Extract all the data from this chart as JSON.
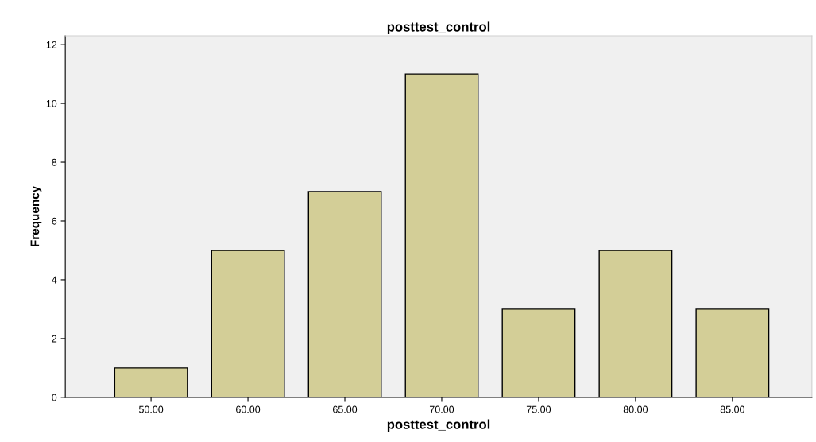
{
  "chart_data": {
    "type": "bar",
    "title": "posttest_control",
    "xlabel": "posttest_control",
    "ylabel": "Frequency",
    "categories": [
      "50.00",
      "60.00",
      "65.00",
      "70.00",
      "75.00",
      "80.00",
      "85.00"
    ],
    "values": [
      1,
      5,
      7,
      11,
      3,
      5,
      3
    ],
    "color": "#d3ce97",
    "ylim": [
      0,
      12.3
    ],
    "yticks": [
      0,
      2,
      4,
      6,
      8,
      10,
      12
    ],
    "grid": false,
    "legend": false
  }
}
